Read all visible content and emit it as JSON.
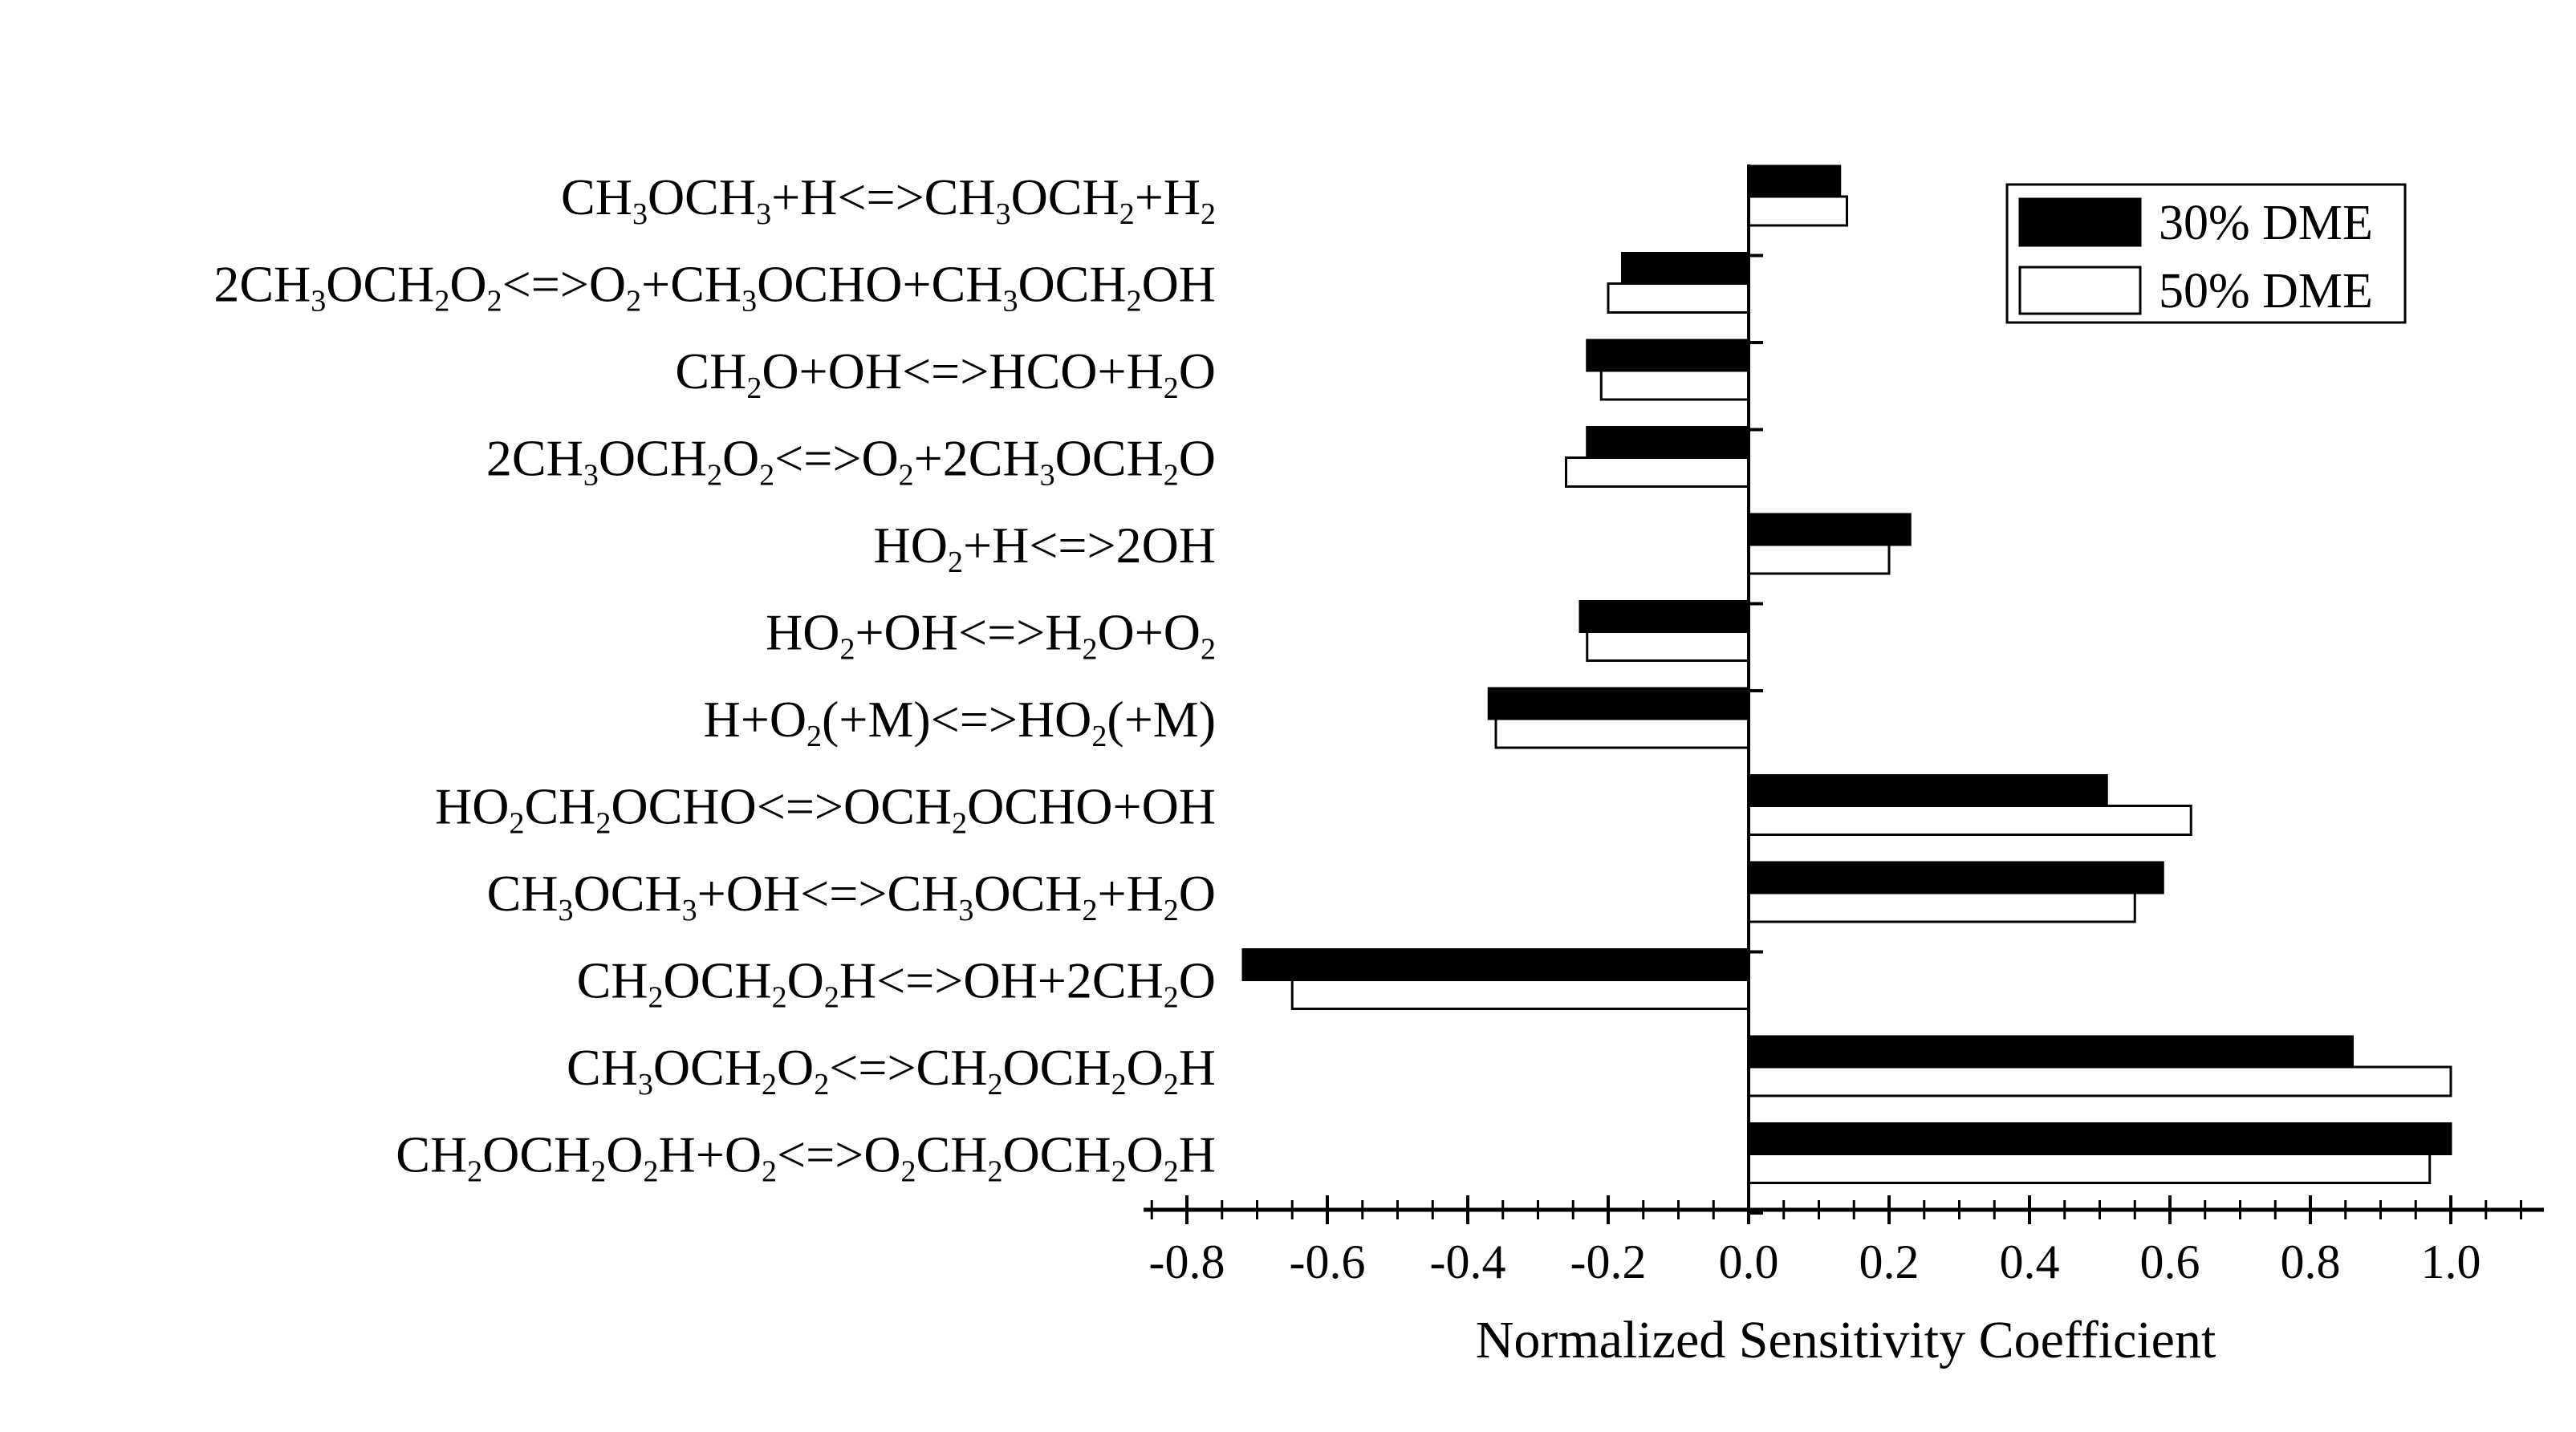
{
  "chart_data": {
    "type": "bar",
    "orientation": "horizontal",
    "xlabel": "Normalized Sensitivity Coefficient",
    "xlim": [
      -0.85,
      1.14
    ],
    "xticks": [
      "-0.8",
      "-0.6",
      "-0.4",
      "-0.2",
      "0.0",
      "0.2",
      "0.4",
      "0.6",
      "0.8",
      "1.0"
    ],
    "grid": false,
    "legend_position": "top-right",
    "categories": [
      {
        "parts": [
          [
            "CH",
            ""
          ],
          [
            "3",
            "sub"
          ],
          [
            "OCH",
            ""
          ],
          [
            "3",
            "sub"
          ],
          [
            "+H<=>CH",
            ""
          ],
          [
            "3",
            "sub"
          ],
          [
            "OCH",
            ""
          ],
          [
            "2",
            "sub"
          ],
          [
            "+H",
            ""
          ],
          [
            "2",
            "sub"
          ]
        ]
      },
      {
        "parts": [
          [
            "2CH",
            ""
          ],
          [
            "3",
            "sub"
          ],
          [
            "OCH",
            ""
          ],
          [
            "2",
            "sub"
          ],
          [
            "O",
            ""
          ],
          [
            "2",
            "sub"
          ],
          [
            "<=>O",
            ""
          ],
          [
            "2",
            "sub"
          ],
          [
            "+CH",
            ""
          ],
          [
            "3",
            "sub"
          ],
          [
            "OCHO+CH",
            ""
          ],
          [
            "3",
            "sub"
          ],
          [
            "OCH",
            ""
          ],
          [
            "2",
            "sub"
          ],
          [
            "OH",
            ""
          ]
        ]
      },
      {
        "parts": [
          [
            "CH",
            ""
          ],
          [
            "2",
            "sub"
          ],
          [
            "O+OH<=>HCO+H",
            ""
          ],
          [
            "2",
            "sub"
          ],
          [
            "O",
            ""
          ]
        ]
      },
      {
        "parts": [
          [
            "2CH",
            ""
          ],
          [
            "3",
            "sub"
          ],
          [
            "OCH",
            ""
          ],
          [
            "2",
            "sub"
          ],
          [
            "O",
            ""
          ],
          [
            "2",
            "sub"
          ],
          [
            "<=>O",
            ""
          ],
          [
            "2",
            "sub"
          ],
          [
            "+2CH",
            ""
          ],
          [
            "3",
            "sub"
          ],
          [
            "OCH",
            ""
          ],
          [
            "2",
            "sub"
          ],
          [
            "O",
            ""
          ]
        ]
      },
      {
        "parts": [
          [
            "HO",
            ""
          ],
          [
            "2",
            "sub"
          ],
          [
            "+H<=>2OH",
            ""
          ]
        ]
      },
      {
        "parts": [
          [
            "HO",
            ""
          ],
          [
            "2",
            "sub"
          ],
          [
            "+OH<=>H",
            ""
          ],
          [
            "2",
            "sub"
          ],
          [
            "O+O",
            ""
          ],
          [
            "2",
            "sub"
          ]
        ]
      },
      {
        "parts": [
          [
            "H+O",
            ""
          ],
          [
            "2",
            "sub"
          ],
          [
            "(+M)<=>HO",
            ""
          ],
          [
            "2",
            "sub"
          ],
          [
            "(+M)",
            ""
          ]
        ]
      },
      {
        "parts": [
          [
            "HO",
            ""
          ],
          [
            "2",
            "sub"
          ],
          [
            "CH",
            ""
          ],
          [
            "2",
            "sub"
          ],
          [
            "OCHO<=>OCH",
            ""
          ],
          [
            "2",
            "sub"
          ],
          [
            "OCHO+OH",
            ""
          ]
        ]
      },
      {
        "parts": [
          [
            "CH",
            ""
          ],
          [
            "3",
            "sub"
          ],
          [
            "OCH",
            ""
          ],
          [
            "3",
            "sub"
          ],
          [
            "+OH<=>CH",
            ""
          ],
          [
            "3",
            "sub"
          ],
          [
            "OCH",
            ""
          ],
          [
            "2",
            "sub"
          ],
          [
            "+H",
            ""
          ],
          [
            "2",
            "sub"
          ],
          [
            "O",
            ""
          ]
        ]
      },
      {
        "parts": [
          [
            "CH",
            ""
          ],
          [
            "2",
            "sub"
          ],
          [
            "OCH",
            ""
          ],
          [
            "2",
            "sub"
          ],
          [
            "O",
            ""
          ],
          [
            "2",
            "sub"
          ],
          [
            "H<=>OH+2CH",
            ""
          ],
          [
            "2",
            "sub"
          ],
          [
            "O",
            ""
          ]
        ]
      },
      {
        "parts": [
          [
            "CH",
            ""
          ],
          [
            "3",
            "sub"
          ],
          [
            "OCH",
            ""
          ],
          [
            "2",
            "sub"
          ],
          [
            "O",
            ""
          ],
          [
            "2",
            "sub"
          ],
          [
            "<=>CH",
            ""
          ],
          [
            "2",
            "sub"
          ],
          [
            "OCH",
            ""
          ],
          [
            "2",
            "sub"
          ],
          [
            "O",
            ""
          ],
          [
            "2",
            "sub"
          ],
          [
            "H",
            ""
          ]
        ]
      },
      {
        "parts": [
          [
            "CH",
            ""
          ],
          [
            "2",
            "sub"
          ],
          [
            "OCH",
            ""
          ],
          [
            "2",
            "sub"
          ],
          [
            "O",
            ""
          ],
          [
            "2",
            "sub"
          ],
          [
            "H+O",
            ""
          ],
          [
            "2",
            "sub"
          ],
          [
            "<=>O",
            ""
          ],
          [
            "2",
            "sub"
          ],
          [
            "CH",
            ""
          ],
          [
            "2",
            "sub"
          ],
          [
            "OCH",
            ""
          ],
          [
            "2",
            "sub"
          ],
          [
            "O",
            ""
          ],
          [
            "2",
            "sub"
          ],
          [
            "H",
            ""
          ]
        ]
      }
    ],
    "series": [
      {
        "name": "30% DME",
        "color": "#000000",
        "fill": "solid",
        "values": [
          0.13,
          -0.18,
          -0.23,
          -0.23,
          0.23,
          -0.24,
          -0.37,
          0.51,
          0.59,
          -0.72,
          0.86,
          1.0
        ]
      },
      {
        "name": "50% DME",
        "color": "#ffffff",
        "fill": "hollow",
        "values": [
          0.14,
          -0.2,
          -0.21,
          -0.26,
          0.2,
          -0.23,
          -0.36,
          0.63,
          0.55,
          -0.65,
          1.0,
          0.97
        ]
      }
    ]
  }
}
